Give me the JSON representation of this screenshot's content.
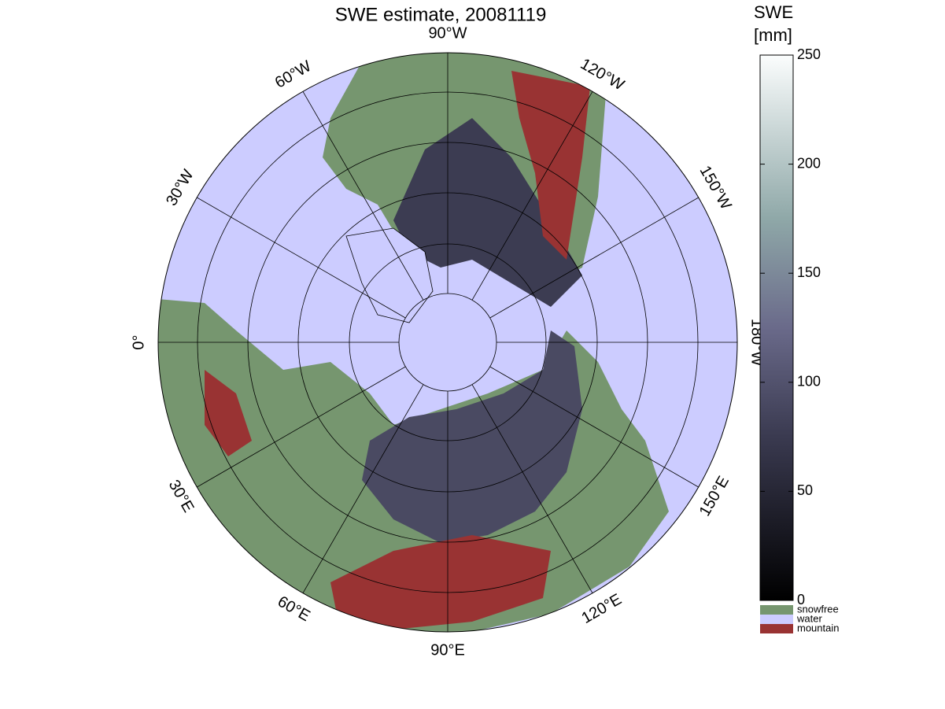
{
  "title": "SWE estimate, 20081119",
  "longitude_labels": [
    "0°",
    "30°E",
    "60°E",
    "90°E",
    "120°E",
    "150°E",
    "180°W",
    "150°W",
    "120°W",
    "90°W",
    "60°W",
    "30°W"
  ],
  "colorbar": {
    "label": "SWE",
    "unit": "[mm]",
    "lim": [
      0,
      250
    ],
    "ticks": [
      0,
      50,
      100,
      150,
      200,
      250
    ]
  },
  "legend": [
    {
      "name": "snowfree",
      "color": "#76966f"
    },
    {
      "name": "water",
      "color": "#ccccff"
    },
    {
      "name": "mountain",
      "color": "#993333"
    }
  ]
}
